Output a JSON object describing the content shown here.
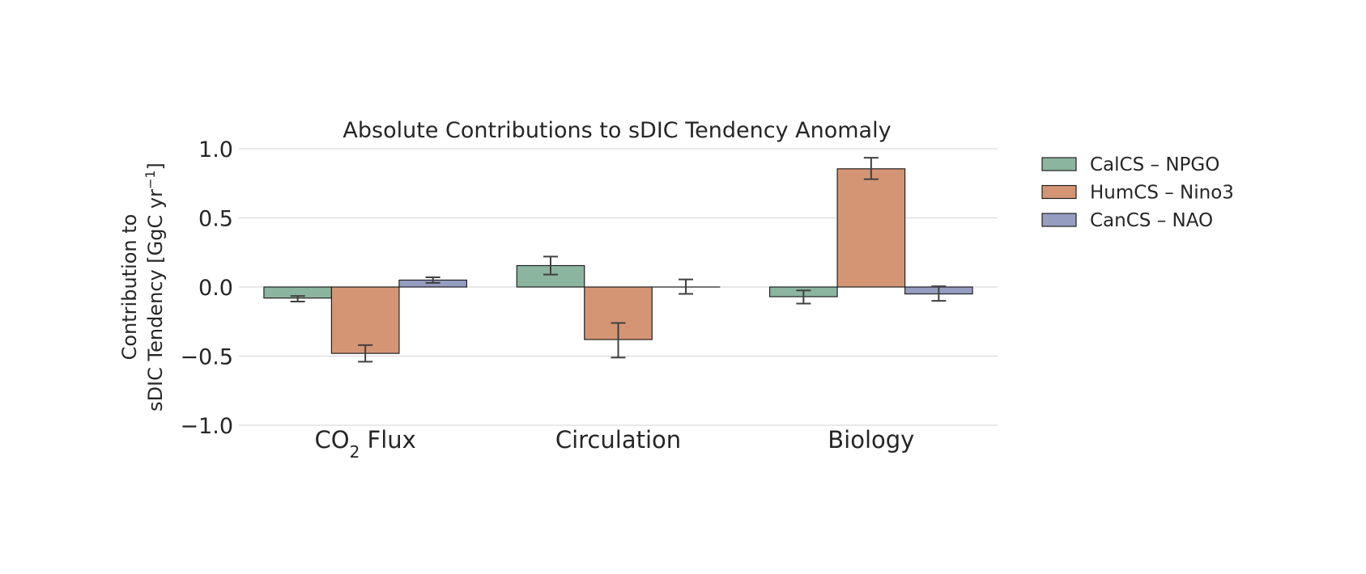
{
  "chart_data": {
    "type": "bar",
    "title": "Absolute Contributions to sDIC Tendency Anomaly",
    "ylabel_line1": "Contribution to",
    "ylabel_line2_pre": "sDIC Tendency [GgC yr",
    "ylabel_line2_sup": "−1",
    "ylabel_line2_post": "]",
    "ylim": [
      -1.0,
      1.0
    ],
    "yticks": [
      1.0,
      0.5,
      0.0,
      -0.5,
      -1.0
    ],
    "ytick_labels": [
      "1.0",
      "0.5",
      "0.0",
      "−0.5",
      "−1.0"
    ],
    "categories": [
      {
        "pre": "CO",
        "sub": "2",
        "post": " Flux"
      },
      {
        "pre": "Circulation",
        "sub": "",
        "post": ""
      },
      {
        "pre": "Biology",
        "sub": "",
        "post": ""
      }
    ],
    "series": [
      {
        "name": "CalCS – NPGO",
        "color": "#8bb59e",
        "values": [
          -0.08,
          0.155,
          -0.07
        ],
        "err_low": [
          -0.105,
          0.09,
          -0.12
        ],
        "err_high": [
          -0.065,
          0.22,
          -0.025
        ]
      },
      {
        "name": "HumCS – Nino3",
        "color": "#d49574",
        "values": [
          -0.48,
          -0.38,
          0.855
        ],
        "err_low": [
          -0.54,
          -0.51,
          0.78
        ],
        "err_high": [
          -0.42,
          -0.26,
          0.935
        ]
      },
      {
        "name": "CanCS – NAO",
        "color": "#959dc1",
        "values": [
          0.05,
          0.0,
          -0.05
        ],
        "err_low": [
          0.03,
          -0.05,
          -0.1
        ],
        "err_high": [
          0.07,
          0.055,
          0.005
        ]
      }
    ],
    "grid": true,
    "legend_position": "right"
  }
}
